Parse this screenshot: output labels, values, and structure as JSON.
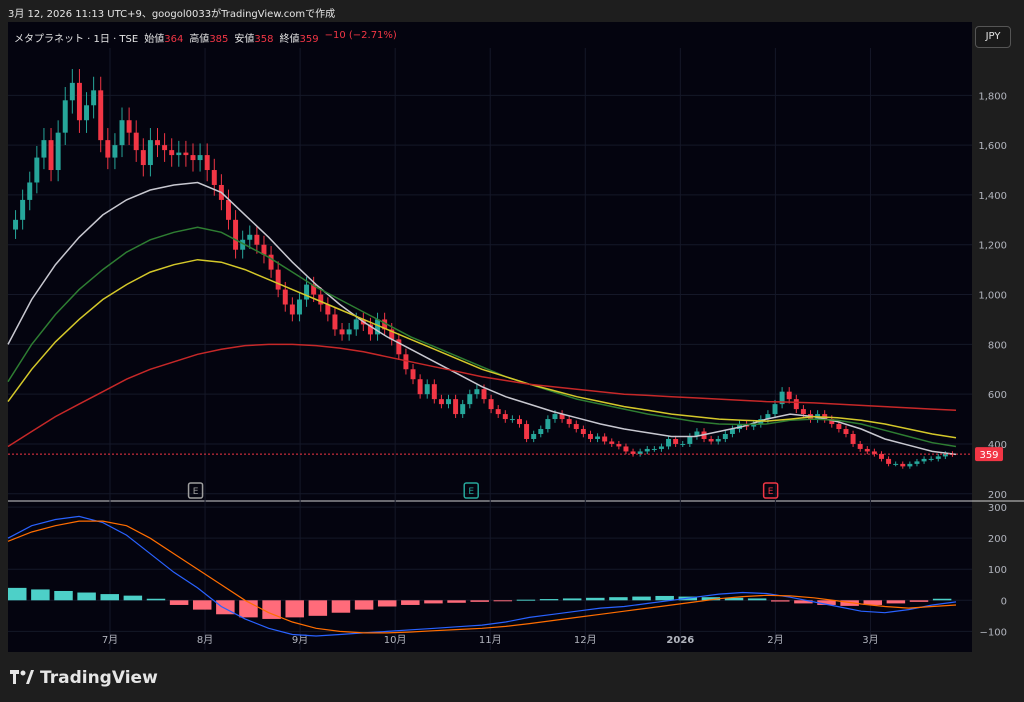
{
  "header": {
    "caption": "3月 12, 2026 11:13 UTC+9、googol0033がTradingView.comで作成"
  },
  "legend": {
    "symbol": "メタプラネット · 1日 · TSE",
    "open_label": "始値",
    "open": "364",
    "high_label": "高値",
    "high": "385",
    "low_label": "安値",
    "low": "358",
    "close_label": "終値",
    "close": "359",
    "change": "−10 (−2.71%)"
  },
  "currency_button": "JPY",
  "footer": {
    "brand": "TradingView",
    "logo_icon": "tradingview-logo-icon"
  },
  "colors": {
    "up": "#26a69a",
    "down": "#f23645",
    "ma_gray": "#c8c8d0",
    "ma_green": "#2e7d32",
    "ma_yellow": "#d4c82a",
    "ma_red": "#c62828",
    "macd": "#2962ff",
    "signal": "#ff6d00"
  },
  "chart_data": [
    {
      "type": "candlestick",
      "title": "",
      "ylabel": "",
      "y_ticks": [
        "200",
        "400",
        "600",
        "800",
        "1,000",
        "1,200",
        "1,400",
        "1,600",
        "1,800"
      ],
      "ylim": [
        175,
        1990
      ],
      "x_ticks": [
        "7月",
        "8月",
        "9月",
        "10月",
        "11月",
        "12月",
        "2026",
        "2月",
        "3月"
      ],
      "last_price_label": "359",
      "earnings_markers": [
        {
          "label": "E",
          "month_index": 1.4,
          "style": "gray"
        },
        {
          "label": "E",
          "month_index": 4.3,
          "style": "green"
        },
        {
          "label": "E",
          "month_index": 7.45,
          "style": "red"
        }
      ],
      "closes": [
        1300,
        1380,
        1450,
        1550,
        1620,
        1500,
        1650,
        1780,
        1850,
        1700,
        1760,
        1820,
        1620,
        1550,
        1600,
        1700,
        1650,
        1580,
        1520,
        1620,
        1600,
        1580,
        1560,
        1570,
        1560,
        1540,
        1560,
        1500,
        1440,
        1380,
        1300,
        1180,
        1220,
        1240,
        1200,
        1160,
        1100,
        1020,
        960,
        920,
        980,
        1040,
        1000,
        960,
        920,
        860,
        840,
        860,
        900,
        880,
        840,
        900,
        860,
        820,
        760,
        700,
        660,
        600,
        640,
        580,
        560,
        580,
        520,
        560,
        600,
        620,
        580,
        540,
        520,
        500,
        500,
        480,
        420,
        440,
        460,
        500,
        520,
        500,
        480,
        460,
        440,
        420,
        430,
        410,
        400,
        390,
        370,
        360,
        370,
        380,
        380,
        390,
        420,
        400,
        400,
        430,
        450,
        420,
        410,
        420,
        440,
        460,
        480,
        470,
        480,
        500,
        520,
        560,
        610,
        580,
        540,
        520,
        500,
        520,
        500,
        480,
        460,
        440,
        400,
        380,
        370,
        360,
        340,
        320,
        320,
        310,
        320,
        330,
        340,
        340,
        350,
        360,
        359
      ],
      "series": [
        {
          "name": "",
          "color": "#c8c8d0",
          "values": [
            800,
            980,
            1120,
            1230,
            1320,
            1380,
            1420,
            1440,
            1450,
            1410,
            1320,
            1230,
            1130,
            1040,
            960,
            890,
            830,
            780,
            730,
            680,
            630,
            590,
            560,
            530,
            505,
            480,
            460,
            445,
            430,
            430,
            450,
            470,
            500,
            520,
            510,
            490,
            460,
            420,
            395,
            370,
            358
          ]
        },
        {
          "name": "",
          "color": "#2e7d32",
          "values": [
            650,
            800,
            920,
            1020,
            1100,
            1170,
            1220,
            1250,
            1270,
            1250,
            1200,
            1150,
            1090,
            1030,
            980,
            930,
            880,
            830,
            790,
            750,
            710,
            670,
            640,
            610,
            580,
            560,
            540,
            520,
            505,
            490,
            480,
            478,
            480,
            495,
            500,
            495,
            480,
            455,
            430,
            405,
            390
          ]
        },
        {
          "name": "",
          "color": "#d4c82a",
          "values": [
            570,
            700,
            810,
            900,
            980,
            1040,
            1090,
            1120,
            1140,
            1130,
            1100,
            1060,
            1020,
            980,
            940,
            900,
            860,
            820,
            780,
            740,
            700,
            670,
            640,
            615,
            590,
            570,
            550,
            535,
            520,
            510,
            500,
            495,
            492,
            500,
            510,
            505,
            495,
            480,
            460,
            440,
            425
          ]
        },
        {
          "name": "",
          "color": "#c62828",
          "values": [
            390,
            450,
            510,
            560,
            610,
            660,
            700,
            730,
            760,
            780,
            795,
            800,
            800,
            795,
            785,
            770,
            750,
            730,
            710,
            690,
            670,
            655,
            640,
            630,
            620,
            610,
            600,
            595,
            590,
            585,
            580,
            575,
            570,
            568,
            565,
            560,
            555,
            550,
            545,
            540,
            535
          ]
        }
      ]
    },
    {
      "type": "histogram",
      "title": "",
      "y_ticks": [
        "300",
        "200",
        "100",
        "0",
        "−100"
      ],
      "ylim": [
        -160,
        310
      ],
      "macd": [
        200,
        240,
        260,
        270,
        250,
        210,
        150,
        90,
        40,
        -20,
        -60,
        -90,
        -110,
        -115,
        -110,
        -105,
        -100,
        -95,
        -90,
        -85,
        -80,
        -70,
        -55,
        -45,
        -35,
        -25,
        -20,
        -10,
        0,
        10,
        20,
        25,
        22,
        10,
        -5,
        -20,
        -35,
        -40,
        -30,
        -15,
        -5
      ],
      "signal": [
        190,
        220,
        240,
        255,
        255,
        240,
        200,
        150,
        100,
        50,
        0,
        -40,
        -70,
        -90,
        -100,
        -105,
        -105,
        -102,
        -98,
        -94,
        -90,
        -84,
        -75,
        -65,
        -55,
        -45,
        -35,
        -25,
        -15,
        -5,
        5,
        12,
        16,
        14,
        8,
        -2,
        -12,
        -20,
        -25,
        -20,
        -15
      ],
      "histogram": [
        40,
        35,
        30,
        25,
        20,
        15,
        5,
        -15,
        -30,
        -45,
        -55,
        -60,
        -55,
        -50,
        -40,
        -30,
        -20,
        -15,
        -10,
        -8,
        -5,
        -2,
        2,
        4,
        6,
        8,
        10,
        12,
        14,
        12,
        10,
        8,
        6,
        -4,
        -10,
        -15,
        -18,
        -15,
        -10,
        -5,
        5
      ]
    }
  ]
}
